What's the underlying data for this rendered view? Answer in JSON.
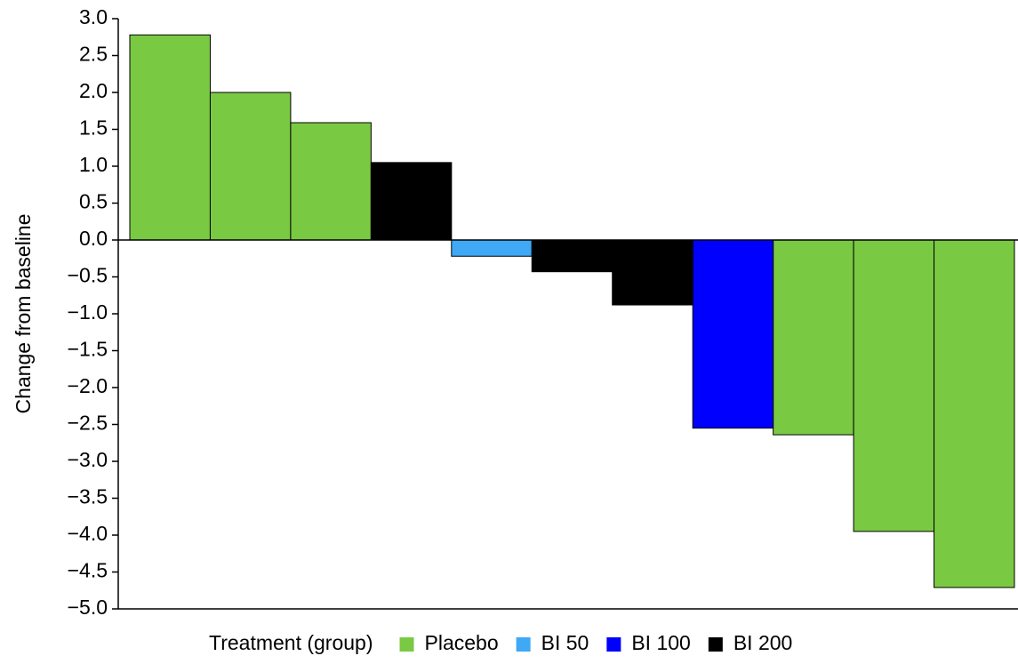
{
  "chart_data": {
    "type": "bar",
    "y_label": "Change from baseline",
    "legend_title": "Treatment (group)",
    "categories": [
      null,
      null,
      null,
      null,
      null,
      null,
      null,
      null,
      null,
      null,
      null
    ],
    "series": [
      {
        "name": "Placebo",
        "color": "#7ac943",
        "values": [
          2.78,
          2.0,
          1.59,
          null,
          null,
          null,
          null,
          null,
          -2.64,
          -3.95,
          -4.71
        ]
      },
      {
        "name": "BI 50",
        "color": "#3fa9f5",
        "values": [
          null,
          null,
          null,
          null,
          -0.22,
          null,
          null,
          null,
          null,
          null,
          null
        ]
      },
      {
        "name": "BI 100",
        "color": "#0000ff",
        "values": [
          null,
          null,
          null,
          null,
          null,
          null,
          null,
          -2.55,
          null,
          null,
          null
        ]
      },
      {
        "name": "BI 200",
        "color": "#000000",
        "values": [
          null,
          null,
          null,
          1.05,
          null,
          -0.43,
          -0.88,
          null,
          null,
          null,
          null
        ]
      }
    ],
    "ylim": [
      -5.0,
      3.0
    ],
    "yticks": [
      {
        "value": 3.0,
        "label": "3.0"
      },
      {
        "value": 2.5,
        "label": "2.5"
      },
      {
        "value": 2.0,
        "label": "2.0"
      },
      {
        "value": 1.5,
        "label": "1.5"
      },
      {
        "value": 1.0,
        "label": "1.0"
      },
      {
        "value": 0.5,
        "label": "0.5"
      },
      {
        "value": 0.0,
        "label": "0.0"
      },
      {
        "value": -0.5,
        "label": "−0.5"
      },
      {
        "value": -1.0,
        "label": "−1.0"
      },
      {
        "value": -1.5,
        "label": "−1.5"
      },
      {
        "value": -2.0,
        "label": "−2.0"
      },
      {
        "value": -2.5,
        "label": "−2.5"
      },
      {
        "value": -3.0,
        "label": "−3.0"
      },
      {
        "value": -3.5,
        "label": "−3.5"
      },
      {
        "value": -4.0,
        "label": "−4.0"
      },
      {
        "value": -4.5,
        "label": "−4.5"
      },
      {
        "value": -5.0,
        "label": "−5.0"
      }
    ],
    "legend": "bottom"
  }
}
